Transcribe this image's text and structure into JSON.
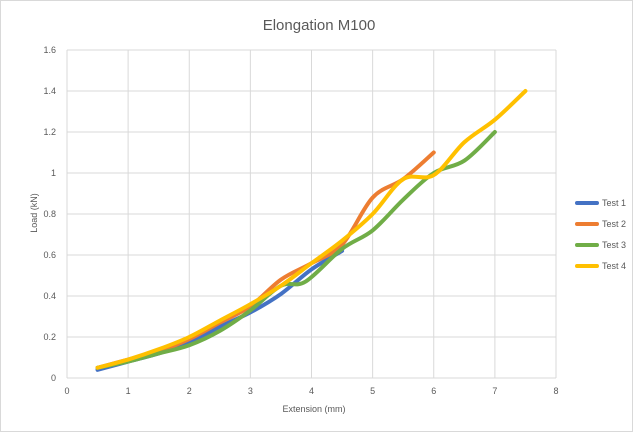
{
  "chart_data": {
    "type": "line",
    "title": "Elongation M100",
    "xlabel": "Extension (mm)",
    "ylabel": "Load (kN)",
    "xlim": [
      0,
      8
    ],
    "ylim": [
      0,
      1.6
    ],
    "xticks": [
      "0",
      "1",
      "2",
      "3",
      "4",
      "5",
      "6",
      "7",
      "8"
    ],
    "yticks": [
      "0",
      "0.2",
      "0.4",
      "0.6",
      "0.8",
      "1",
      "1.2",
      "1.4",
      "1.6"
    ],
    "grid": true,
    "legend_position": "right",
    "series": [
      {
        "name": "Test 1",
        "color": "#4472C4",
        "x": [
          0.5,
          1,
          1.5,
          2,
          2.5,
          3,
          3.5,
          4,
          4.5
        ],
        "y": [
          0.04,
          0.08,
          0.12,
          0.17,
          0.25,
          0.32,
          0.41,
          0.53,
          0.62
        ]
      },
      {
        "name": "Test 2",
        "color": "#ED7D31",
        "x": [
          0.5,
          1,
          1.5,
          2,
          2.5,
          3,
          3.5,
          4,
          4.5,
          5,
          5.5,
          6
        ],
        "y": [
          0.05,
          0.09,
          0.13,
          0.19,
          0.27,
          0.35,
          0.48,
          0.56,
          0.65,
          0.88,
          0.97,
          1.1
        ]
      },
      {
        "name": "Test 3",
        "color": "#70AD47",
        "x": [
          0.5,
          1,
          1.5,
          2,
          2.5,
          3,
          3.5,
          3.9,
          4.5,
          5,
          5.5,
          6,
          6.5,
          7
        ],
        "y": [
          0.05,
          0.08,
          0.12,
          0.16,
          0.23,
          0.33,
          0.45,
          0.47,
          0.63,
          0.72,
          0.87,
          1.0,
          1.06,
          1.2
        ]
      },
      {
        "name": "Test 4",
        "color": "#FFC000",
        "x": [
          0.5,
          1,
          1.5,
          2,
          2.5,
          3,
          3.5,
          4,
          4.5,
          5,
          5.5,
          6,
          6.5,
          7,
          7.5
        ],
        "y": [
          0.05,
          0.09,
          0.14,
          0.2,
          0.28,
          0.36,
          0.45,
          0.56,
          0.67,
          0.8,
          0.97,
          0.99,
          1.15,
          1.26,
          1.4
        ]
      }
    ]
  }
}
